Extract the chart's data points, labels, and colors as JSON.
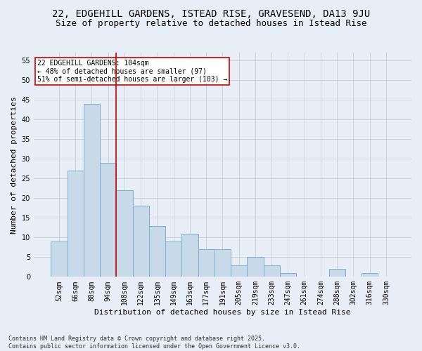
{
  "title_line1": "22, EDGEHILL GARDENS, ISTEAD RISE, GRAVESEND, DA13 9JU",
  "title_line2": "Size of property relative to detached houses in Istead Rise",
  "xlabel": "Distribution of detached houses by size in Istead Rise",
  "ylabel": "Number of detached properties",
  "categories": [
    "52sqm",
    "66sqm",
    "80sqm",
    "94sqm",
    "108sqm",
    "122sqm",
    "135sqm",
    "149sqm",
    "163sqm",
    "177sqm",
    "191sqm",
    "205sqm",
    "219sqm",
    "233sqm",
    "247sqm",
    "261sqm",
    "274sqm",
    "288sqm",
    "302sqm",
    "316sqm",
    "330sqm"
  ],
  "values": [
    9,
    27,
    44,
    29,
    22,
    18,
    13,
    9,
    11,
    7,
    7,
    3,
    5,
    3,
    1,
    0,
    0,
    2,
    0,
    1,
    0
  ],
  "bar_color": "#c8d9e8",
  "bar_edge_color": "#7bafd4",
  "grid_color": "#c8d4e0",
  "background_color": "#e8eef5",
  "vline_x": 3.5,
  "vline_color": "#cc0000",
  "annotation_text": "22 EDGEHILL GARDENS: 104sqm\n← 48% of detached houses are smaller (97)\n51% of semi-detached houses are larger (103) →",
  "annotation_box_color": "#ffffff",
  "annotation_box_edge": "#cc0000",
  "ylim": [
    0,
    57
  ],
  "yticks": [
    0,
    5,
    10,
    15,
    20,
    25,
    30,
    35,
    40,
    45,
    50,
    55
  ],
  "footnote": "Contains HM Land Registry data © Crown copyright and database right 2025.\nContains public sector information licensed under the Open Government Licence v3.0.",
  "title_fontsize": 10,
  "subtitle_fontsize": 9,
  "tick_fontsize": 7,
  "label_fontsize": 8,
  "annotation_fontsize": 7,
  "footnote_fontsize": 6
}
